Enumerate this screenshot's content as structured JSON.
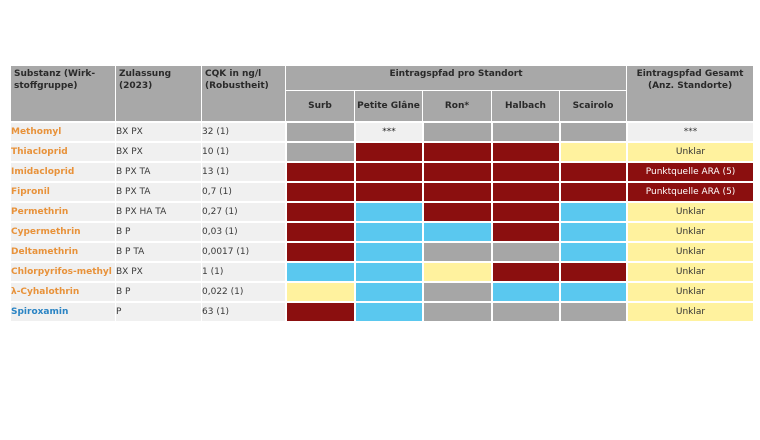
{
  "colors": {
    "grey": "#a6a6a6",
    "red": "#8b0f0f",
    "blue": "#5ac8ef",
    "yellow": "#fff29e",
    "orange_text": "#e8923a",
    "blue_text": "#2a84c4"
  },
  "headers": {
    "substanz": "Substanz (Wirk-stoffgruppe)",
    "zulassung": "Zulassung (2023)",
    "cqk": "CQK in ng/l (Robustheit)",
    "eintragspfad": "Eintragspfad pro Standort",
    "gesamt": "Eintragspfad Gesamt (Anz. Standorte)",
    "sites": [
      "Surb",
      "Petite Glâne",
      "Ron*",
      "Halbach",
      "Scairolo"
    ]
  },
  "rows": [
    {
      "name": "Methomyl",
      "name_color": "orange",
      "zul": "BX PX",
      "cqk": "32 (1)",
      "sites": [
        "grey",
        "lightgrey",
        "grey",
        "grey",
        "grey"
      ],
      "site_text": [
        "",
        "***",
        "",
        "",
        ""
      ],
      "total": "***",
      "total_color": "lightgrey"
    },
    {
      "name": "Thiacloprid",
      "name_color": "orange",
      "zul": "BX PX",
      "cqk": "10 (1)",
      "sites": [
        "grey",
        "red",
        "red",
        "red",
        "yellow"
      ],
      "site_text": [
        "",
        "",
        "",
        "",
        ""
      ],
      "total": "Unklar",
      "total_color": "yellow"
    },
    {
      "name": "Imidacloprid",
      "name_color": "orange",
      "zul": "B PX TA",
      "cqk": "13 (1)",
      "sites": [
        "red",
        "red",
        "red",
        "red",
        "red"
      ],
      "site_text": [
        "",
        "",
        "",
        "",
        ""
      ],
      "total": "Punktquelle ARA (5)",
      "total_color": "red"
    },
    {
      "name": "Fipronil",
      "name_color": "orange",
      "zul": "B PX TA",
      "cqk": "0,7 (1)",
      "sites": [
        "red",
        "red",
        "red",
        "red",
        "red"
      ],
      "site_text": [
        "",
        "",
        "",
        "",
        ""
      ],
      "total": "Punktquelle ARA (5)",
      "total_color": "red"
    },
    {
      "name": "Permethrin",
      "name_color": "orange",
      "zul": "B PX HA TA",
      "cqk": "0,27 (1)",
      "sites": [
        "red",
        "blue",
        "red",
        "red",
        "blue"
      ],
      "site_text": [
        "",
        "",
        "",
        "",
        ""
      ],
      "total": "Unklar",
      "total_color": "yellow"
    },
    {
      "name": "Cypermethrin",
      "name_color": "orange",
      "zul": "B P",
      "cqk": "0,03 (1)",
      "sites": [
        "red",
        "blue",
        "blue",
        "red",
        "blue"
      ],
      "site_text": [
        "",
        "",
        "",
        "",
        ""
      ],
      "total": "Unklar",
      "total_color": "yellow"
    },
    {
      "name": "Deltamethrin",
      "name_color": "orange",
      "zul": "B P TA",
      "cqk": "0,0017 (1)",
      "sites": [
        "red",
        "blue",
        "grey",
        "grey",
        "blue"
      ],
      "site_text": [
        "",
        "",
        "",
        "",
        ""
      ],
      "total": "Unklar",
      "total_color": "yellow"
    },
    {
      "name": "Chlorpyrifos-methyl",
      "name_color": "orange",
      "zul": "BX PX",
      "cqk": "1 (1)",
      "sites": [
        "blue",
        "blue",
        "yellow",
        "red",
        "red"
      ],
      "site_text": [
        "",
        "",
        "",
        "",
        ""
      ],
      "total": "Unklar",
      "total_color": "yellow"
    },
    {
      "name": "λ-Cyhalothrin",
      "name_color": "orange",
      "zul": "B P",
      "cqk": "0,022 (1)",
      "sites": [
        "yellow",
        "blue",
        "grey",
        "blue",
        "blue"
      ],
      "site_text": [
        "",
        "",
        "",
        "",
        ""
      ],
      "total": "Unklar",
      "total_color": "yellow"
    },
    {
      "name": "Spiroxamin",
      "name_color": "blue",
      "zul": "P",
      "cqk": "63 (1)",
      "sites": [
        "red",
        "blue",
        "grey",
        "grey",
        "grey"
      ],
      "site_text": [
        "",
        "",
        "",
        "",
        ""
      ],
      "total": "Unklar",
      "total_color": "yellow"
    }
  ]
}
